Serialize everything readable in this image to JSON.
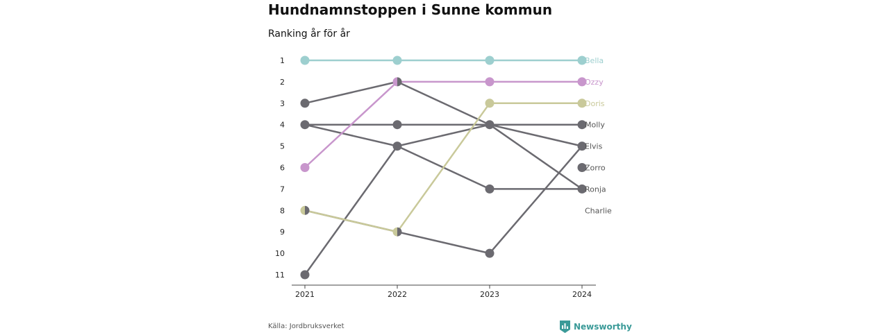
{
  "header": {
    "title": "Hundnamnstoppen i Sunne kommun",
    "subtitle": "Ranking år för år"
  },
  "footer": {
    "source": "Källa: Jordbruksverket",
    "brand": "Newsworthy",
    "brand_icon": "newsworthy-logo-icon"
  },
  "chart_data": {
    "type": "line",
    "x": [
      "2021",
      "2022",
      "2023",
      "2024"
    ],
    "y_ticks": [
      "1",
      "2",
      "3",
      "4",
      "5",
      "6",
      "7",
      "8",
      "9",
      "10",
      "11"
    ],
    "ylim": [
      1,
      11
    ],
    "y_reversed": true,
    "grid": false,
    "series": [
      {
        "name": "Bella",
        "ranks": [
          1,
          1,
          1,
          1
        ],
        "color": "#9dcfcf",
        "highlight": true
      },
      {
        "name": "Ozzy",
        "ranks": [
          6,
          2,
          2,
          2
        ],
        "color": "#c896cc",
        "highlight": true
      },
      {
        "name": "Doris",
        "ranks": [
          8,
          9,
          3,
          3
        ],
        "color": "#c9c99a",
        "highlight": true
      },
      {
        "name": "Molly",
        "ranks": [
          4,
          4,
          4,
          4
        ],
        "color": "#6b6a70",
        "highlight": false
      },
      {
        "name": "Elvis",
        "ranks": [
          11,
          5,
          4,
          5
        ],
        "color": "#6b6a70",
        "highlight": false
      },
      {
        "name": "Zorro",
        "ranks": [
          null,
          null,
          null,
          6
        ],
        "color": "#6b6a70",
        "highlight": false
      },
      {
        "name": "Ronja",
        "ranks": [
          4,
          5,
          7,
          7
        ],
        "color": "#6b6a70",
        "highlight": false
      },
      {
        "name": "Charlie",
        "ranks": [
          3,
          2,
          4,
          7
        ],
        "color": "#6b6a70",
        "highlight": false
      },
      {
        "name": "",
        "ranks": [
          8,
          9,
          10,
          5
        ],
        "color": "#6b6a70",
        "highlight": false
      }
    ],
    "end_labels": [
      "Bella",
      "Ozzy",
      "Doris",
      "Molly",
      "Elvis",
      "Zorro",
      "Ronja",
      "Charlie"
    ]
  }
}
